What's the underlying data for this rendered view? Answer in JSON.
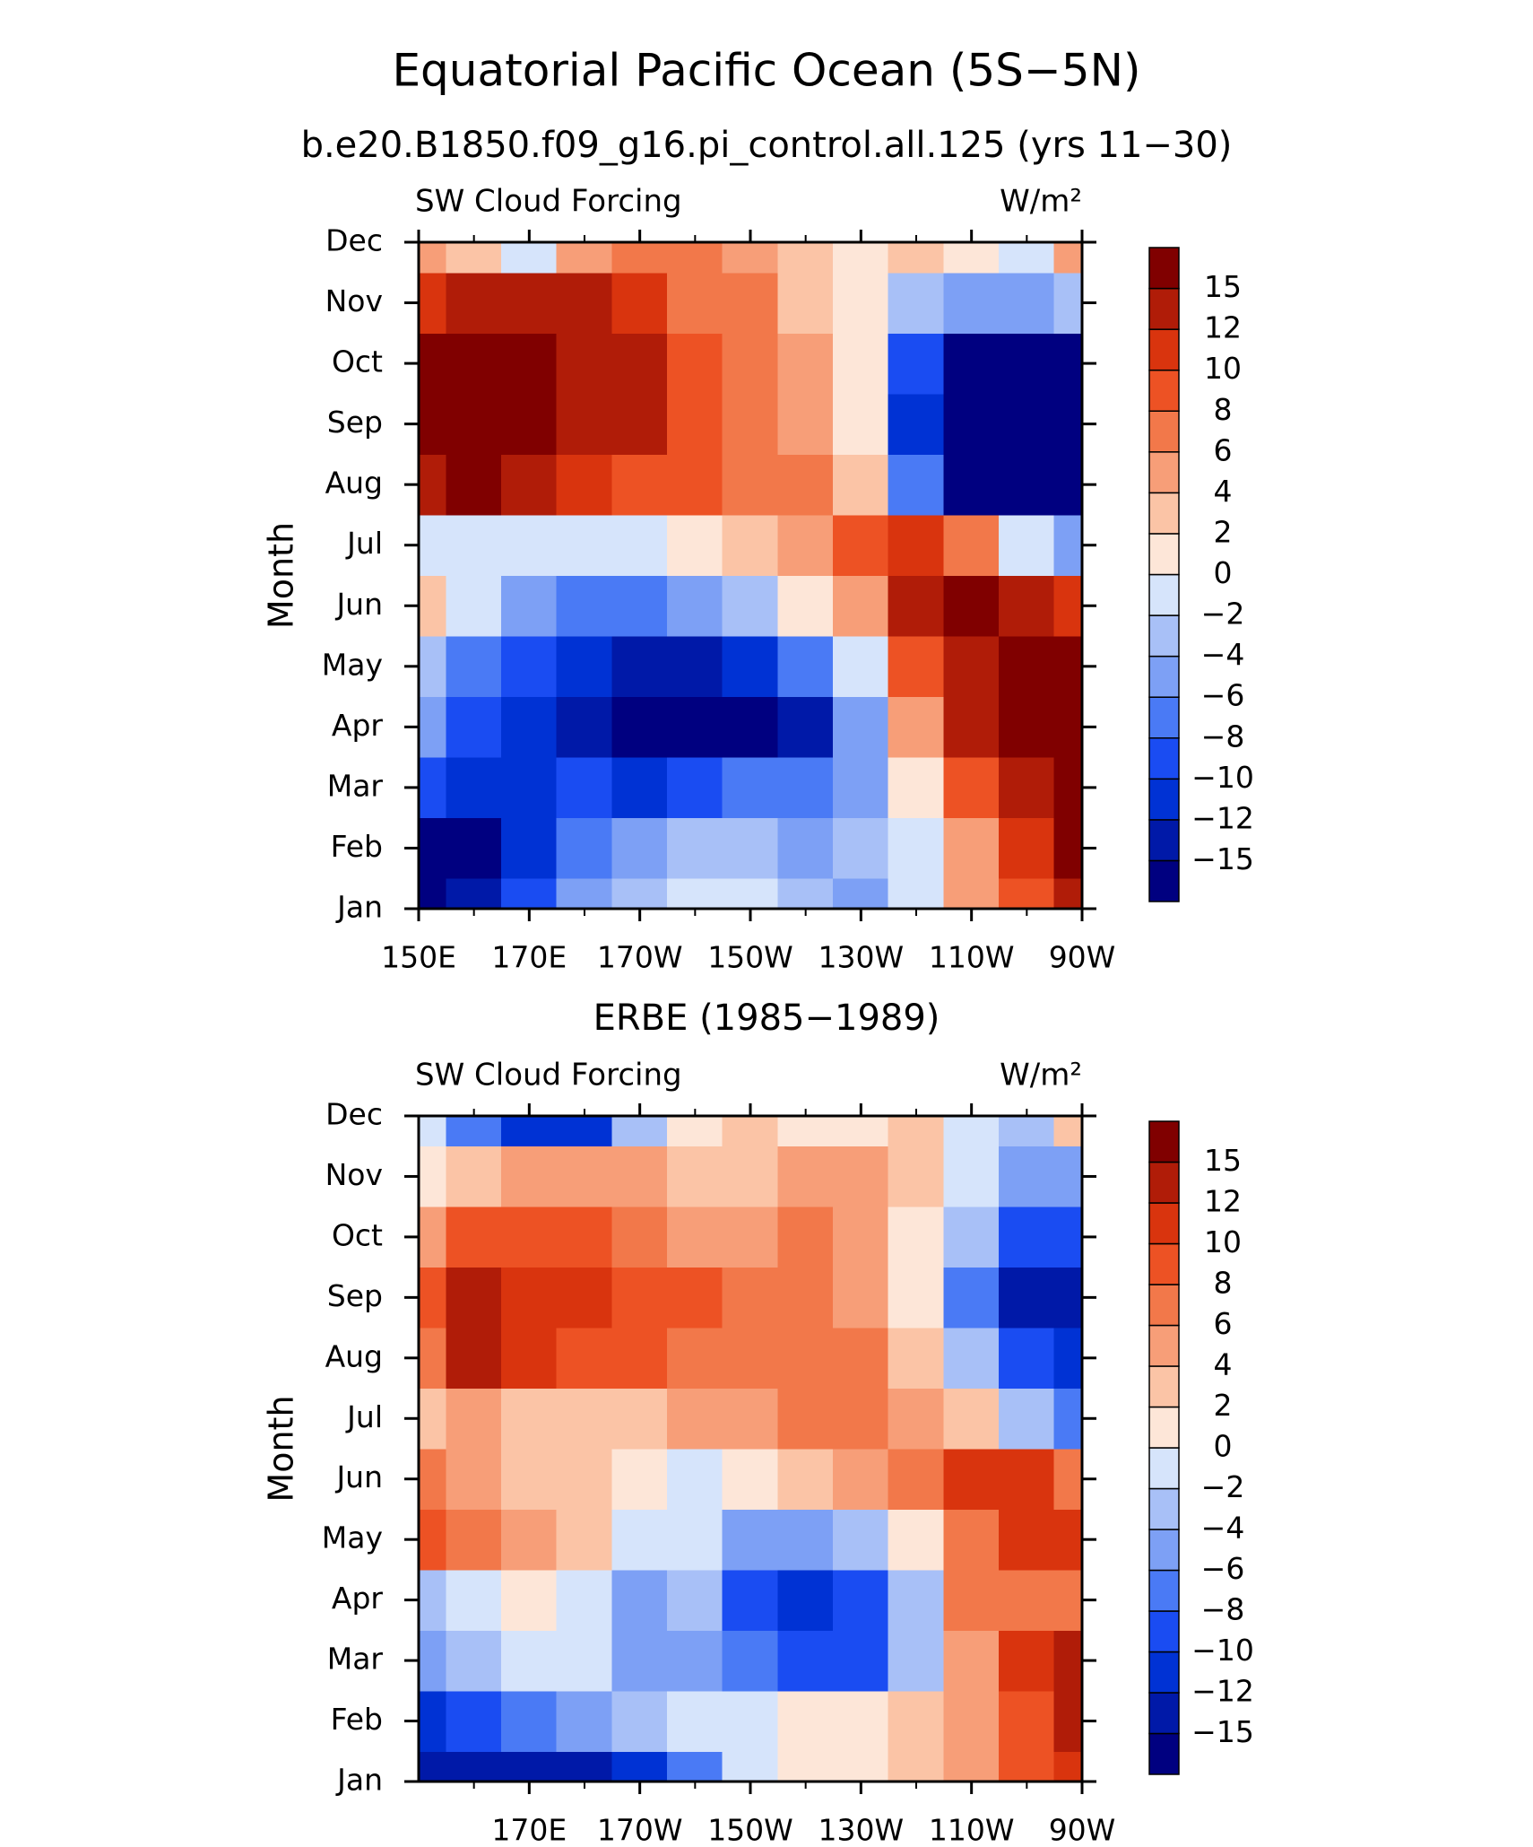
{
  "chart_data": [
    {
      "type": "contour",
      "title": "Equatorial Pacific Ocean (5S−5N)",
      "subtitle": "b.e20.B1850.f09_g16.pi_control.all.125 (yrs 11−30)",
      "left_label": "SW Cloud Forcing",
      "right_label": "W/m²",
      "y_label": "Month",
      "categories": [
        "Jan",
        "Feb",
        "Mar",
        "Apr",
        "May",
        "Jun",
        "Jul",
        "Aug",
        "Sep",
        "Oct",
        "Nov",
        "Dec"
      ],
      "x": [
        150,
        160,
        170,
        180,
        190,
        200,
        210,
        220,
        230,
        240,
        250,
        260,
        270
      ],
      "xlim": [
        150,
        270
      ],
      "xticks": [
        {
          "value": 150,
          "label": "150E"
        },
        {
          "value": 170,
          "label": "170E"
        },
        {
          "value": 190,
          "label": "170W"
        },
        {
          "value": 210,
          "label": "150W"
        },
        {
          "value": 230,
          "label": "130W"
        },
        {
          "value": 250,
          "label": "110W"
        },
        {
          "value": 270,
          "label": "90W"
        }
      ],
      "xminorticks": [
        160,
        180,
        200,
        220,
        240,
        260
      ],
      "values": [
        [
          -16,
          -14,
          -10,
          -6,
          -4,
          -2,
          -2,
          -4,
          -6,
          -2,
          4,
          8,
          14
        ],
        [
          -16,
          -16,
          -12,
          -7,
          -6,
          -4,
          -4,
          -5,
          -4,
          -2,
          4,
          10,
          15
        ],
        [
          -10,
          -12,
          -12,
          -10,
          -12,
          -10,
          -8,
          -8,
          -6,
          0,
          8,
          14,
          16
        ],
        [
          -6,
          -10,
          -12,
          -14,
          -16,
          -16,
          -16,
          -14,
          -6,
          4,
          12,
          16,
          16
        ],
        [
          -4,
          -8,
          -10,
          -12,
          -14,
          -14,
          -12,
          -8,
          -2,
          8,
          14,
          16,
          16
        ],
        [
          2,
          -2,
          -6,
          -8,
          -8,
          -6,
          -4,
          0,
          4,
          12,
          16,
          14,
          10
        ],
        [
          -2,
          -1,
          -2,
          -2,
          -2,
          0,
          2,
          4,
          8,
          10,
          6,
          -2,
          -6
        ],
        [
          14,
          16,
          12,
          10,
          8,
          8,
          6,
          6,
          2,
          -8,
          -16,
          -16,
          -16
        ],
        [
          16,
          16,
          16,
          14,
          12,
          8,
          6,
          4,
          0,
          -12,
          -16,
          -16,
          -16
        ],
        [
          16,
          16,
          16,
          14,
          12,
          8,
          6,
          4,
          0,
          -10,
          -16,
          -16,
          -16
        ],
        [
          10,
          14,
          14,
          12,
          10,
          6,
          6,
          2,
          0,
          -4,
          -6,
          -6,
          -4
        ],
        [
          4,
          2,
          -2,
          4,
          6,
          6,
          4,
          2,
          0,
          2,
          0,
          -2,
          4
        ]
      ],
      "levels": [
        {
          "value": -15,
          "label": "−15"
        },
        {
          "value": -12,
          "label": "−12"
        },
        {
          "value": -10,
          "label": "−10"
        },
        {
          "value": -8,
          "label": "−8"
        },
        {
          "value": -6,
          "label": "−6"
        },
        {
          "value": -4,
          "label": "−4"
        },
        {
          "value": -2,
          "label": "−2"
        },
        0,
        2,
        4,
        6,
        8,
        10,
        12,
        15
      ],
      "colors": [
        "#000080",
        "#0019a8",
        "#0032d4",
        "#1a4cf2",
        "#4a7af5",
        "#7da0f5",
        "#a8c0f7",
        "#d6e4fb",
        "#fde6d8",
        "#fbc4a6",
        "#f79e78",
        "#f2784a",
        "#ed5224",
        "#d9340e",
        "#b01c08",
        "#800000"
      ]
    },
    {
      "type": "contour",
      "title": "ERBE (1985−1989)",
      "left_label": "SW Cloud Forcing",
      "right_label": "W/m²",
      "y_label": "Month",
      "categories": [
        "Jan",
        "Feb",
        "Mar",
        "Apr",
        "May",
        "Jun",
        "Jul",
        "Aug",
        "Sep",
        "Oct",
        "Nov",
        "Dec"
      ],
      "x": [
        150,
        160,
        170,
        180,
        190,
        200,
        210,
        220,
        230,
        240,
        250,
        260,
        270
      ],
      "xlim": [
        150,
        270
      ],
      "xticks": [
        {
          "value": 170,
          "label": "170E"
        },
        {
          "value": 190,
          "label": "170W"
        },
        {
          "value": 210,
          "label": "150W"
        },
        {
          "value": 230,
          "label": "130W"
        },
        {
          "value": 250,
          "label": "110W"
        },
        {
          "value": 270,
          "label": "90W"
        }
      ],
      "xminorticks": [
        160,
        180,
        200,
        220,
        240,
        260
      ],
      "values": [
        [
          -14,
          -14,
          -14,
          -15,
          -12,
          -8,
          -2,
          0,
          0,
          2,
          4,
          8,
          10
        ],
        [
          -12,
          -10,
          -8,
          -6,
          -4,
          -2,
          -2,
          0,
          0,
          2,
          4,
          8,
          12
        ],
        [
          -6,
          -4,
          -2,
          -2,
          -6,
          -6,
          -8,
          -10,
          -10,
          -4,
          4,
          10,
          14
        ],
        [
          -4,
          -2,
          0,
          -2,
          -6,
          -4,
          -10,
          -12,
          -10,
          -4,
          6,
          6,
          6
        ],
        [
          8,
          6,
          4,
          2,
          -2,
          -2,
          -6,
          -6,
          -4,
          0,
          6,
          10,
          10
        ],
        [
          6,
          4,
          2,
          2,
          0,
          -2,
          0,
          2,
          4,
          6,
          10,
          10,
          6
        ],
        [
          2,
          4,
          2,
          2,
          2,
          4,
          4,
          6,
          6,
          4,
          2,
          -4,
          -8
        ],
        [
          6,
          12,
          10,
          8,
          8,
          6,
          6,
          6,
          6,
          2,
          -4,
          -10,
          -12
        ],
        [
          8,
          12,
          10,
          10,
          8,
          8,
          6,
          6,
          4,
          0,
          -8,
          -14,
          -14
        ],
        [
          4,
          8,
          8,
          8,
          6,
          4,
          4,
          6,
          4,
          0,
          -4,
          -10,
          -10
        ],
        [
          0,
          2,
          4,
          4,
          4,
          2,
          2,
          4,
          4,
          2,
          -2,
          -6,
          -6
        ],
        [
          -2,
          -8,
          -12,
          -12,
          -4,
          0,
          2,
          0,
          0,
          2,
          -2,
          -4,
          2
        ]
      ],
      "levels": [
        {
          "value": -15,
          "label": "−15"
        },
        {
          "value": -12,
          "label": "−12"
        },
        {
          "value": -10,
          "label": "−10"
        },
        {
          "value": -8,
          "label": "−8"
        },
        {
          "value": -6,
          "label": "−6"
        },
        {
          "value": -4,
          "label": "−4"
        },
        {
          "value": -2,
          "label": "−2"
        },
        0,
        2,
        4,
        6,
        8,
        10,
        12,
        15
      ],
      "colors": [
        "#000080",
        "#0019a8",
        "#0032d4",
        "#1a4cf2",
        "#4a7af5",
        "#7da0f5",
        "#a8c0f7",
        "#d6e4fb",
        "#fde6d8",
        "#fbc4a6",
        "#f79e78",
        "#f2784a",
        "#ed5224",
        "#d9340e",
        "#b01c08",
        "#800000"
      ]
    }
  ]
}
